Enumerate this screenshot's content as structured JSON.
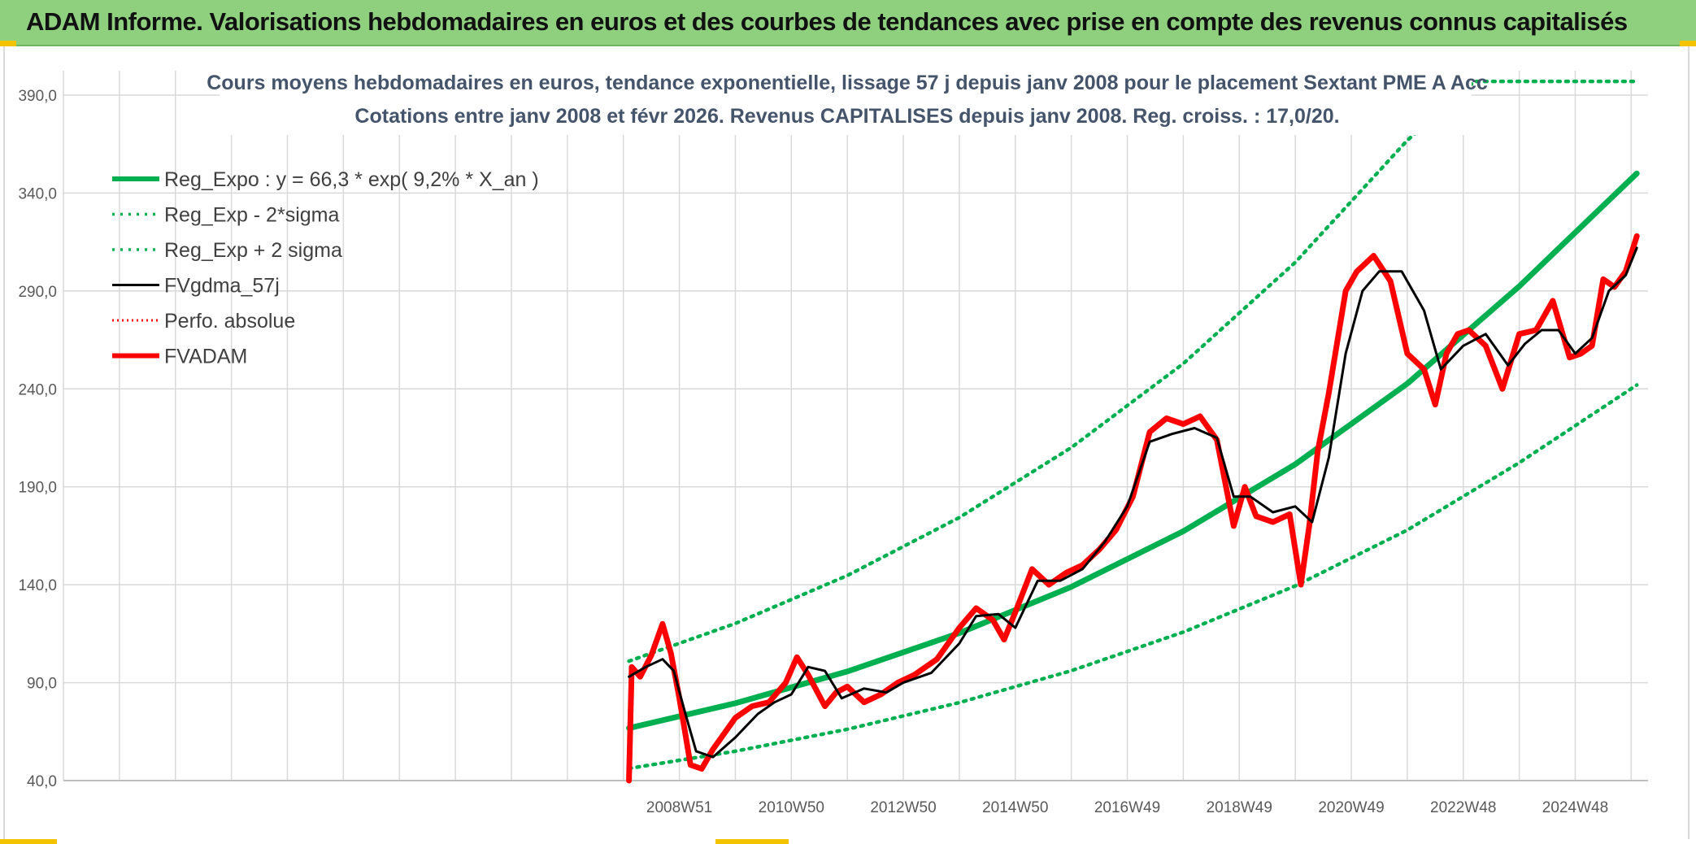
{
  "header": {
    "title": "ADAM Informe. Valorisations hebdomadaires en euros et des courbes de tendances avec prise en compte des revenus connus capitalisés"
  },
  "colors": {
    "banner": "#8fd07f",
    "reg_expo": "#00b050",
    "fvgdma": "#000000",
    "fvadam": "#ff0000",
    "grid": "#d9d9d9"
  },
  "chart_data": {
    "type": "line",
    "title": "Cours moyens hebdomadaires en euros, tendance exponentielle, lissage 57 j depuis janv 2008 pour le placement Sextant PME A Acc",
    "subtitle": "Cotations entre janv 2008 et févr 2026. Revenus CAPITALISES depuis janv 2008. Reg. croiss. : 17,0/20.",
    "xlabel": "",
    "ylabel": "",
    "ylim": [
      40,
      390
    ],
    "yticks": [
      "390,0",
      "340,0",
      "290,0",
      "240,0",
      "190,0",
      "140,0",
      "90,0",
      "40,0"
    ],
    "xlim": [
      1998.0,
      2026.3
    ],
    "xtick_labels": [
      {
        "label": "2008W51",
        "x": 2009.0
      },
      {
        "label": "2010W50",
        "x": 2011.0
      },
      {
        "label": "2012W50",
        "x": 2013.0
      },
      {
        "label": "2014W50",
        "x": 2015.0
      },
      {
        "label": "2016W49",
        "x": 2017.0
      },
      {
        "label": "2018W49",
        "x": 2019.0
      },
      {
        "label": "2020W49",
        "x": 2021.0
      },
      {
        "label": "2022W48",
        "x": 2023.0
      },
      {
        "label": "2024W48",
        "x": 2025.0
      }
    ],
    "legend_position": "top-left",
    "series": [
      {
        "name": "Reg_Expo : y = 66,3 * exp( 9,2% *  X_an )",
        "style": "solid-thick",
        "color": "#00b050",
        "x": [
          2008.1,
          2010,
          2012,
          2014,
          2016,
          2018,
          2020,
          2022,
          2024,
          2026.1
        ],
        "y": [
          66.8,
          79.5,
          95.7,
          115.3,
          138.9,
          167.3,
          201.5,
          242.7,
          292.4,
          350.0
        ]
      },
      {
        "name": "Reg_Exp - 2*sigma",
        "style": "dotted",
        "color": "#00b050",
        "x": [
          2008.1,
          2010,
          2012,
          2014,
          2016,
          2018,
          2020,
          2022,
          2024,
          2026.1
        ],
        "y": [
          46.2,
          55.0,
          66.2,
          79.8,
          96.1,
          115.8,
          139.4,
          167.9,
          202.3,
          242.0
        ]
      },
      {
        "name": "Reg_Exp + 2 sigma",
        "style": "dotted",
        "color": "#00b050",
        "x": [
          2008.1,
          2010,
          2012,
          2014,
          2016,
          2018,
          2020,
          2022,
          2023.2,
          2024,
          2026.1
        ],
        "y": [
          101.0,
          120.2,
          144.7,
          174.3,
          210.0,
          252.9,
          304.6,
          366.9,
          400.0,
          400.0,
          400.0
        ]
      },
      {
        "name": "FVgdma_57j",
        "style": "solid",
        "color": "#000000",
        "x": [
          2008.1,
          2008.4,
          2008.7,
          2008.9,
          2009.1,
          2009.3,
          2009.6,
          2010.0,
          2010.4,
          2010.7,
          2011.0,
          2011.3,
          2011.6,
          2011.9,
          2012.3,
          2012.7,
          2013.0,
          2013.5,
          2014.0,
          2014.3,
          2014.7,
          2015.0,
          2015.4,
          2015.8,
          2016.2,
          2016.6,
          2017.0,
          2017.4,
          2017.8,
          2018.2,
          2018.6,
          2018.9,
          2019.2,
          2019.6,
          2020.0,
          2020.3,
          2020.6,
          2020.9,
          2021.2,
          2021.5,
          2021.9,
          2022.3,
          2022.6,
          2023.0,
          2023.4,
          2023.8,
          2024.1,
          2024.4,
          2024.7,
          2025.0,
          2025.3,
          2025.6,
          2025.9,
          2026.1
        ],
        "y": [
          93,
          98,
          102,
          96,
          75,
          55,
          52,
          62,
          74,
          80,
          84,
          98,
          96,
          82,
          87,
          85,
          90,
          95,
          110,
          124,
          125,
          118,
          142,
          142,
          148,
          162,
          180,
          213,
          217,
          220,
          215,
          185,
          185,
          177,
          180,
          172,
          205,
          258,
          290,
          300,
          300,
          280,
          250,
          262,
          268,
          252,
          263,
          270,
          270,
          258,
          266,
          290,
          298,
          312
        ]
      },
      {
        "name": "Perfo. absolue",
        "style": "dotted-thin",
        "color": "#ff0000",
        "x": [],
        "y": []
      },
      {
        "name": "FVADAM",
        "style": "solid-thick",
        "color": "#ff0000",
        "x": [
          2008.1,
          2008.15,
          2008.3,
          2008.5,
          2008.7,
          2008.85,
          2009.0,
          2009.2,
          2009.4,
          2009.6,
          2009.8,
          2010.0,
          2010.3,
          2010.6,
          2010.9,
          2011.1,
          2011.3,
          2011.6,
          2011.8,
          2012.0,
          2012.3,
          2012.6,
          2012.9,
          2013.2,
          2013.6,
          2014.0,
          2014.3,
          2014.6,
          2014.8,
          2015.0,
          2015.3,
          2015.6,
          2015.9,
          2016.2,
          2016.5,
          2016.8,
          2017.1,
          2017.4,
          2017.7,
          2018.0,
          2018.3,
          2018.6,
          2018.9,
          2019.1,
          2019.3,
          2019.6,
          2019.9,
          2020.1,
          2020.25,
          2020.4,
          2020.6,
          2020.9,
          2021.1,
          2021.4,
          2021.7,
          2022.0,
          2022.3,
          2022.5,
          2022.7,
          2022.9,
          2023.1,
          2023.4,
          2023.7,
          2024.0,
          2024.3,
          2024.6,
          2024.9,
          2025.1,
          2025.3,
          2025.5,
          2025.7,
          2025.9,
          2026.1
        ],
        "y": [
          40,
          98,
          93,
          104,
          120,
          105,
          82,
          48,
          46,
          56,
          64,
          72,
          78,
          80,
          90,
          103,
          94,
          78,
          85,
          88,
          80,
          84,
          90,
          94,
          102,
          118,
          128,
          122,
          112,
          126,
          148,
          140,
          146,
          150,
          158,
          168,
          185,
          218,
          225,
          222,
          226,
          214,
          170,
          190,
          175,
          172,
          176,
          140,
          170,
          208,
          238,
          290,
          300,
          308,
          295,
          258,
          250,
          232,
          258,
          268,
          270,
          262,
          240,
          268,
          270,
          285,
          256,
          258,
          262,
          296,
          292,
          300,
          318
        ]
      }
    ]
  }
}
